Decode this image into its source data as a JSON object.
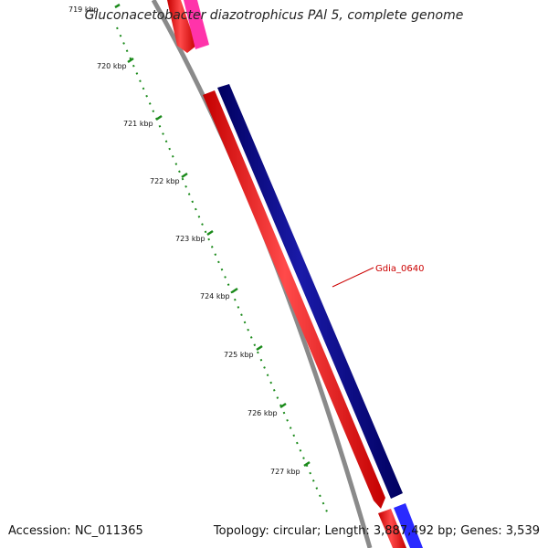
{
  "title": "Gluconacetobacter diazotrophicus PAl 5, complete genome",
  "accession_label": "Accession: NC_011365",
  "topology_label": "Topology: circular;",
  "length_label": "Length: 3,887,492 bp;",
  "genes_label": "Genes: 3,539",
  "tick_labels": [
    "719 kbp",
    "720 kbp",
    "721 kbp",
    "722 kbp",
    "723 kbp",
    "724 kbp",
    "725 kbp",
    "726 kbp",
    "727 kbp"
  ],
  "gene_label": "Gdia_0640",
  "colors": {
    "backbone": "#8a8a8a",
    "forward_gene": "#ff0000",
    "reverse_gene": "#000080",
    "pseudo_gene": "#ff33aa",
    "blue_gene": "#2a2aff",
    "tick": "#1a8a1a",
    "label": "#cc0000"
  }
}
